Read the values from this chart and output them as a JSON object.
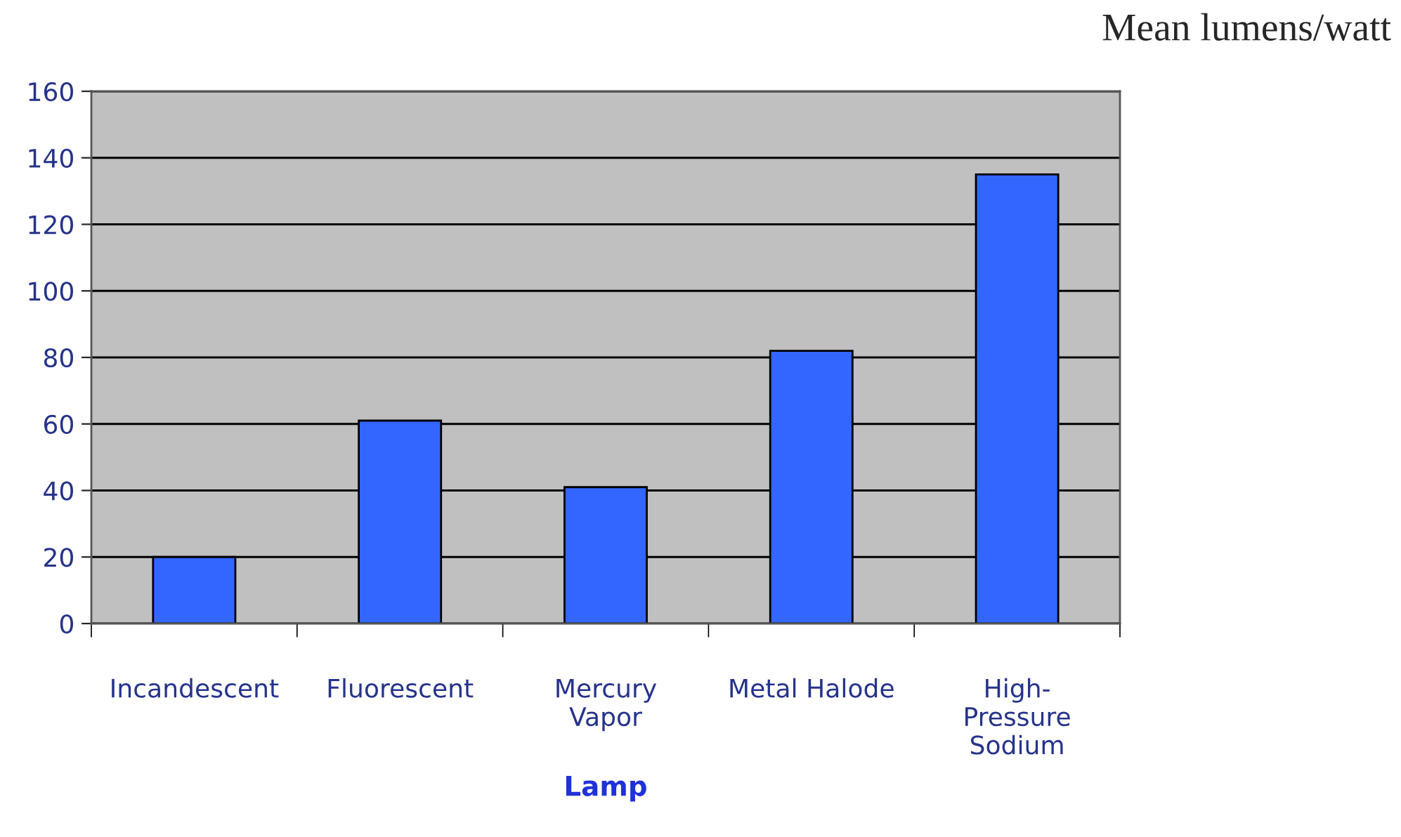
{
  "chart_data": {
    "type": "bar",
    "title": "Mean lumens/watt",
    "xlabel": "Lamp",
    "categories": [
      "Incandescent",
      "Fluorescent",
      "Mercury\nVapor",
      "Metal Halode",
      "High-\nPressure\nSodium"
    ],
    "values": [
      20,
      61,
      41,
      82,
      135
    ],
    "color": "#3366ff",
    "ylim": [
      0,
      160
    ],
    "yticks": [
      0,
      20,
      40,
      60,
      80,
      100,
      120,
      140,
      160
    ],
    "grid": "y"
  }
}
